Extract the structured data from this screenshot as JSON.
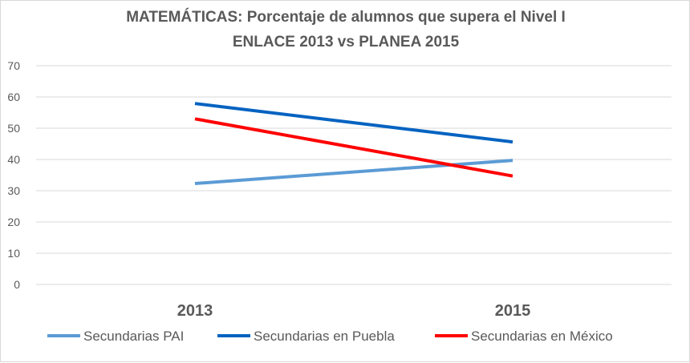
{
  "chart_data": {
    "type": "line",
    "title": "MATEMÁTICAS: Porcentaje de alumnos que supera el Nivel I",
    "subtitle": "ENLACE 2013 vs PLANEA 2015",
    "categories": [
      "2013",
      "2015"
    ],
    "ylim": [
      0,
      70
    ],
    "yticks": [
      0,
      10,
      20,
      30,
      40,
      50,
      60,
      70
    ],
    "grid": true,
    "legend_position": "bottom",
    "series": [
      {
        "name": "Secundarias PAI",
        "values": [
          32.3,
          39.7
        ],
        "color": "#5b9bd5"
      },
      {
        "name": "Secundarias en Puebla",
        "values": [
          57.9,
          45.6
        ],
        "color": "#0563c1"
      },
      {
        "name": "Secundarias en México",
        "values": [
          53.0,
          34.7
        ],
        "color": "#ff0000"
      }
    ]
  }
}
